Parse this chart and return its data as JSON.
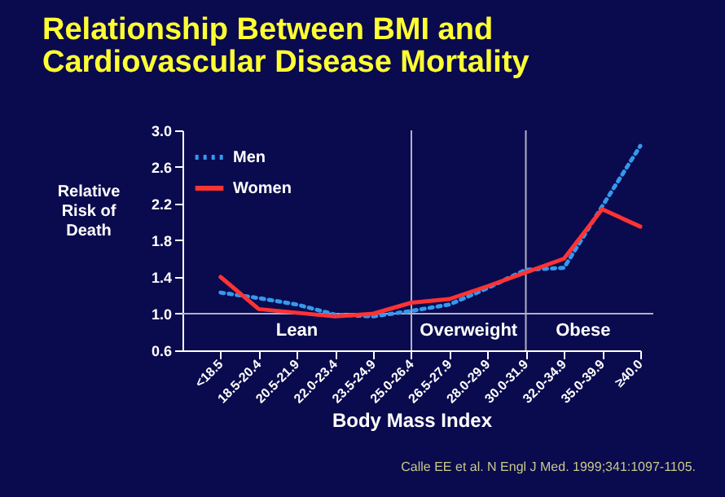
{
  "chart_data": {
    "type": "line",
    "title": "Relationship Between BMI and Cardiovascular Disease Mortality",
    "xlabel": "Body Mass Index",
    "ylabel": "Relative Risk of Death",
    "categories": [
      "<18.5",
      "18.5-20.4",
      "20.5-21.9",
      "22.0-23.4",
      "23.5-24.9",
      "25.0-26.4",
      "26.5-27.9",
      "28.0-29.9",
      "30.0-31.9",
      "32.0-34.9",
      "35.0-39.9",
      "≥40.0"
    ],
    "series": [
      {
        "name": "Men",
        "color": "#3399ee",
        "line_style": "dotted",
        "values": [
          1.23,
          1.17,
          1.1,
          0.99,
          0.97,
          1.03,
          1.1,
          1.28,
          1.48,
          1.5,
          2.17,
          2.83
        ]
      },
      {
        "name": "Women",
        "color": "#ff3333",
        "line_style": "solid",
        "values": [
          1.4,
          1.05,
          1.01,
          0.97,
          1.0,
          1.12,
          1.16,
          1.3,
          1.45,
          1.6,
          2.14,
          1.95
        ]
      }
    ],
    "ylim": [
      0.6,
      3.0
    ],
    "yticks": [
      0.6,
      {
        "value": 1,
        "label": "1.0"
      },
      1.4,
      1.8,
      2.2,
      2.6,
      {
        "value": 3,
        "label": "3.0"
      }
    ],
    "legend": "top left",
    "ref_lines": [
      {
        "axis": "y",
        "value": 1.0,
        "color": "#b0b0c8"
      },
      {
        "axis": "x",
        "value": "25.0-26.4",
        "color": "#b0b0c8"
      },
      {
        "axis": "x",
        "value": "30.0-31.9",
        "color": "#b0b0c8"
      }
    ],
    "annotations": [
      "Lean",
      "Overweight",
      "Obese",
      "Calle EE et al. N Engl J Med. 1999;341:1097-1105."
    ]
  }
}
